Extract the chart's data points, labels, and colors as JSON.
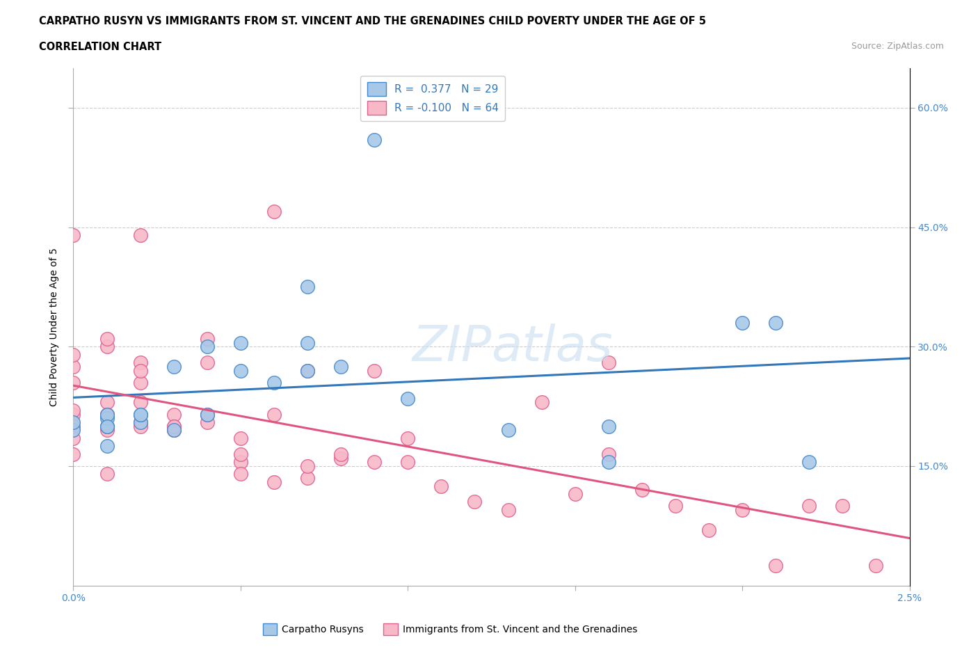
{
  "title_line1": "CARPATHO RUSYN VS IMMIGRANTS FROM ST. VINCENT AND THE GRENADINES CHILD POVERTY UNDER THE AGE OF 5",
  "title_line2": "CORRELATION CHART",
  "source_text": "Source: ZipAtlas.com",
  "ylabel": "Child Poverty Under the Age of 5",
  "xlim": [
    0.0,
    0.025
  ],
  "ylim": [
    0.0,
    0.65
  ],
  "yticks": [
    0.15,
    0.3,
    0.45,
    0.6
  ],
  "blue_color": "#a8c8e8",
  "pink_color": "#f8b8c8",
  "blue_edge_color": "#4488cc",
  "pink_edge_color": "#e06090",
  "blue_line_color": "#3377bb",
  "pink_line_color": "#e05580",
  "watermark_color": "#c8dff0",
  "blue_scatter_x": [
    0.0,
    0.0,
    0.001,
    0.001,
    0.001,
    0.001,
    0.001,
    0.002,
    0.002,
    0.002,
    0.003,
    0.003,
    0.004,
    0.004,
    0.005,
    0.005,
    0.006,
    0.007,
    0.007,
    0.007,
    0.008,
    0.009,
    0.01,
    0.013,
    0.016,
    0.016,
    0.02,
    0.021,
    0.022
  ],
  "blue_scatter_y": [
    0.195,
    0.205,
    0.175,
    0.2,
    0.21,
    0.215,
    0.2,
    0.205,
    0.215,
    0.215,
    0.195,
    0.275,
    0.215,
    0.3,
    0.27,
    0.305,
    0.255,
    0.27,
    0.305,
    0.375,
    0.275,
    0.56,
    0.235,
    0.195,
    0.2,
    0.155,
    0.33,
    0.33,
    0.155
  ],
  "pink_scatter_x": [
    0.0,
    0.0,
    0.0,
    0.0,
    0.0,
    0.0,
    0.0,
    0.0,
    0.001,
    0.001,
    0.001,
    0.001,
    0.001,
    0.001,
    0.001,
    0.002,
    0.002,
    0.002,
    0.002,
    0.002,
    0.002,
    0.003,
    0.003,
    0.003,
    0.003,
    0.004,
    0.004,
    0.004,
    0.004,
    0.005,
    0.005,
    0.005,
    0.006,
    0.006,
    0.006,
    0.007,
    0.007,
    0.008,
    0.008,
    0.009,
    0.009,
    0.01,
    0.01,
    0.011,
    0.012,
    0.013,
    0.014,
    0.015,
    0.016,
    0.016,
    0.017,
    0.018,
    0.019,
    0.02,
    0.021,
    0.022,
    0.023,
    0.024,
    0.0,
    0.001,
    0.002,
    0.003,
    0.005,
    0.007
  ],
  "pink_scatter_y": [
    0.215,
    0.2,
    0.22,
    0.185,
    0.255,
    0.275,
    0.29,
    0.44,
    0.215,
    0.23,
    0.2,
    0.3,
    0.215,
    0.31,
    0.195,
    0.205,
    0.23,
    0.255,
    0.2,
    0.28,
    0.44,
    0.195,
    0.215,
    0.195,
    0.2,
    0.205,
    0.215,
    0.28,
    0.31,
    0.155,
    0.165,
    0.185,
    0.13,
    0.47,
    0.215,
    0.135,
    0.15,
    0.16,
    0.165,
    0.155,
    0.27,
    0.155,
    0.185,
    0.125,
    0.105,
    0.095,
    0.23,
    0.115,
    0.165,
    0.28,
    0.12,
    0.1,
    0.07,
    0.095,
    0.025,
    0.1,
    0.1,
    0.025,
    0.165,
    0.14,
    0.27,
    0.2,
    0.14,
    0.27
  ]
}
